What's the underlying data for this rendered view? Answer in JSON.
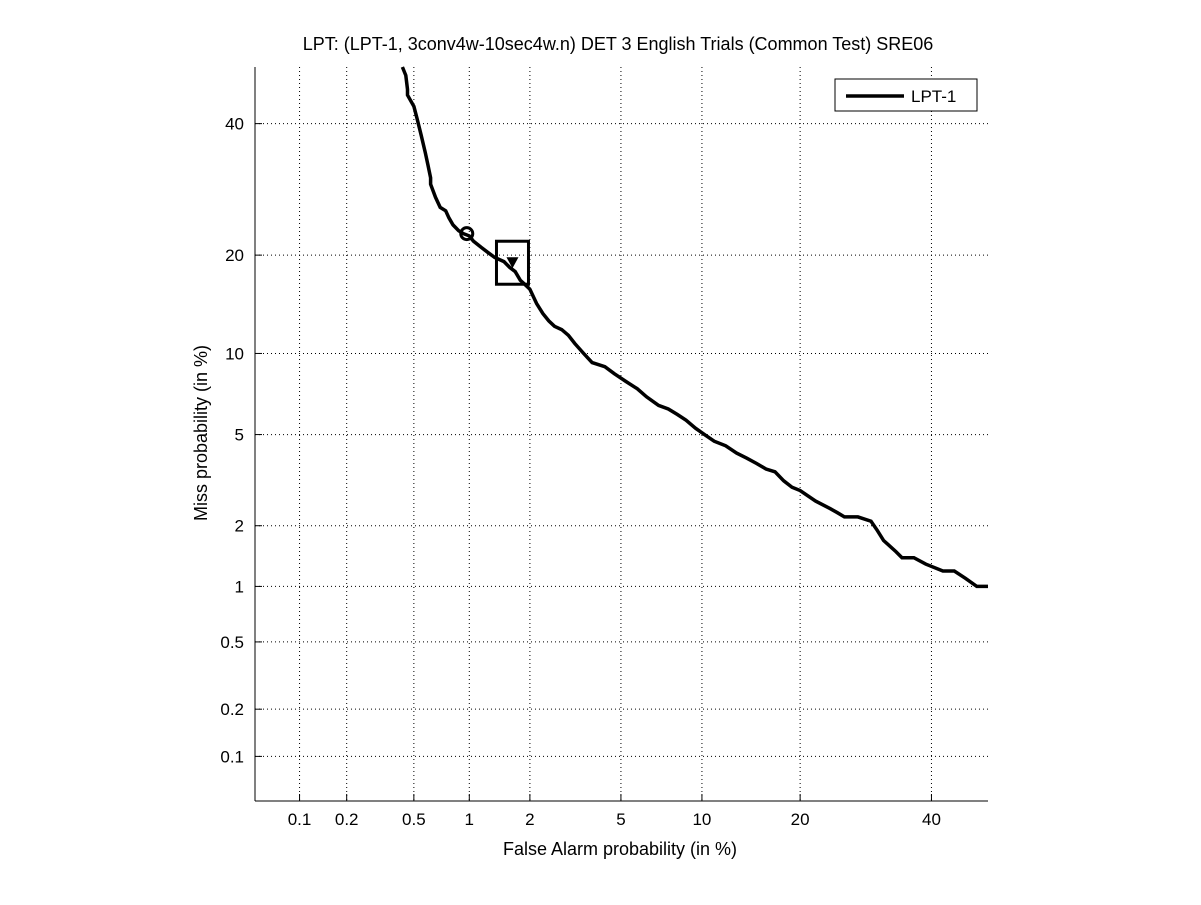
{
  "chart_data": {
    "type": "line",
    "title": "LPT: (LPT-1, 3conv4w-10sec4w.n) DET 3 English Trials (Common Test) SRE06",
    "xlabel": "False Alarm probability (in %)",
    "ylabel": "Miss probability (in %)",
    "x_scale": "normal-deviate (probit)",
    "y_scale": "normal-deviate (probit)",
    "xlim": [
      0.05,
      50
    ],
    "ylim": [
      0.05,
      50
    ],
    "x_ticks": [
      0.1,
      0.2,
      0.5,
      1,
      2,
      5,
      10,
      20,
      40
    ],
    "x_tick_labels": [
      "0.1",
      "0.2",
      "0.5",
      "1",
      "2",
      "5",
      "10",
      "20",
      "40"
    ],
    "y_ticks": [
      0.1,
      0.2,
      0.5,
      1,
      2,
      5,
      10,
      20,
      40
    ],
    "y_tick_labels": [
      "0.1",
      "0.2",
      "0.5",
      "1",
      "2",
      "5",
      "10",
      "20",
      "40"
    ],
    "grid": true,
    "legend_position": "top-right",
    "series": [
      {
        "name": "LPT-1",
        "color": "#000000",
        "x": [
          0.43,
          0.45,
          0.46,
          0.46,
          0.5,
          0.52,
          0.55,
          0.58,
          0.6,
          0.62,
          0.62,
          0.66,
          0.7,
          0.75,
          0.78,
          0.82,
          0.88,
          0.93,
          1.0,
          1.05,
          1.15,
          1.25,
          1.35,
          1.5,
          1.6,
          1.7,
          1.8,
          1.9,
          2.0,
          2.15,
          2.3,
          2.45,
          2.6,
          2.8,
          3.0,
          3.2,
          3.5,
          3.8,
          4.3,
          4.7,
          5.2,
          5.8,
          6.3,
          7.0,
          7.6,
          8.2,
          8.8,
          9.5,
          10.2,
          11.0,
          12.0,
          13.0,
          14.0,
          15.0,
          16.0,
          17.0,
          18.0,
          19.0,
          20.0,
          22.0,
          24.0,
          25.0,
          26.0,
          28.0,
          30.0,
          31.0,
          32.0,
          34.0,
          35.0,
          37.0,
          39.0,
          42.0,
          44.0,
          46.0,
          48.0,
          50.0
        ],
        "y": [
          50.0,
          48.5,
          46.0,
          45.0,
          43.0,
          41.0,
          38.0,
          35.0,
          33.0,
          31.0,
          30.0,
          28.0,
          26.5,
          26.0,
          25.0,
          24.0,
          23.2,
          22.8,
          22.5,
          21.8,
          21.0,
          20.3,
          19.7,
          19.2,
          18.5,
          18.0,
          17.0,
          16.5,
          16.0,
          14.5,
          13.5,
          12.8,
          12.3,
          12.0,
          11.5,
          10.8,
          10.0,
          9.3,
          9.0,
          8.5,
          8.0,
          7.5,
          7.0,
          6.5,
          6.3,
          6.0,
          5.7,
          5.3,
          5.0,
          4.7,
          4.5,
          4.2,
          4.0,
          3.8,
          3.6,
          3.5,
          3.2,
          3.0,
          2.9,
          2.6,
          2.4,
          2.3,
          2.2,
          2.2,
          2.1,
          1.9,
          1.7,
          1.5,
          1.4,
          1.4,
          1.3,
          1.2,
          1.2,
          1.1,
          1.0,
          1.0
        ]
      }
    ],
    "markers": [
      {
        "shape": "circle",
        "x": 0.97,
        "y": 22.8
      },
      {
        "shape": "square",
        "x": 1.65,
        "y": 19.0
      }
    ]
  }
}
